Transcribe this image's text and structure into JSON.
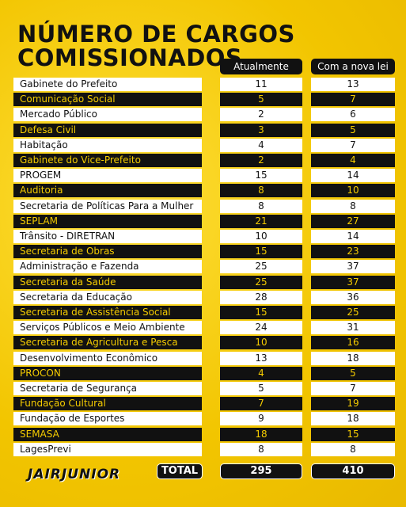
{
  "header": {
    "title_lines": [
      "NÚMERO DE CARGOS",
      "COMISSIONADOS"
    ]
  },
  "table": {
    "columns": [
      "Atualmente",
      "Com a nova lei"
    ],
    "rows": [
      [
        "Gabinete do Prefeito",
        11,
        13
      ],
      [
        "Comunicação Social",
        5,
        7
      ],
      [
        "Mercado Público",
        2,
        6
      ],
      [
        "Defesa Civil",
        3,
        5
      ],
      [
        "Habitação",
        4,
        7
      ],
      [
        "Gabinete do Vice-Prefeito",
        2,
        4
      ],
      [
        "PROGEM",
        15,
        14
      ],
      [
        "Auditoria",
        8,
        10
      ],
      [
        "Secretaria de Políticas Para a Mulher",
        8,
        8
      ],
      [
        "SEPLAM",
        21,
        27
      ],
      [
        "Trânsito - DIRETRAN",
        10,
        14
      ],
      [
        "Secretaria de Obras",
        15,
        23
      ],
      [
        "Administração e Fazenda",
        25,
        37
      ],
      [
        "Secretaria da Saúde",
        25,
        37
      ],
      [
        "Secretaria da Educação",
        28,
        36
      ],
      [
        "Secretaria de Assistência Social",
        15,
        25
      ],
      [
        "Serviços Públicos e Meio Ambiente",
        24,
        31
      ],
      [
        "Secretaria de Agricultura e Pesca",
        10,
        16
      ],
      [
        "Desenvolvimento Econômico",
        13,
        18
      ],
      [
        "PROCON",
        4,
        5
      ],
      [
        "Secretaria de Segurança",
        5,
        7
      ],
      [
        "Fundação Cultural",
        7,
        19
      ],
      [
        "Fundação de Esportes",
        9,
        18
      ],
      [
        "SEMASA",
        18,
        15
      ],
      [
        "LagesPrevi",
        8,
        8
      ]
    ],
    "total": [
      "TOTAL",
      295,
      410
    ]
  },
  "footer": {
    "logo": "JAIRJUNIOR"
  }
}
